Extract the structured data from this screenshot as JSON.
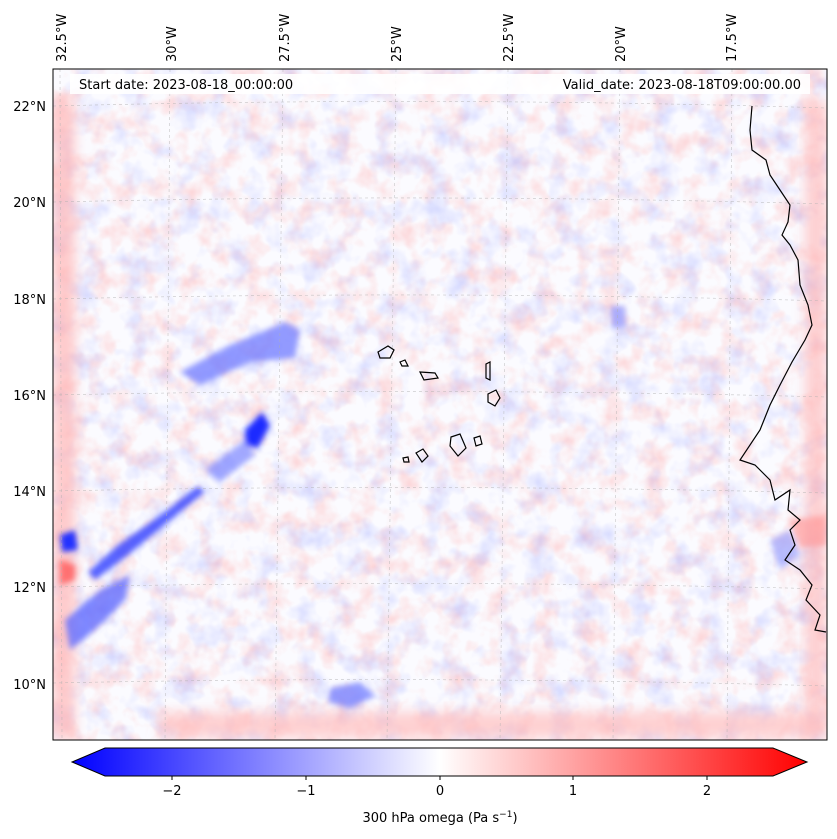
{
  "map": {
    "longitude_labels": [
      "32.5°W",
      "30°W",
      "27.5°W",
      "25°W",
      "22.5°W",
      "20°W",
      "17.5°W"
    ],
    "latitude_labels": [
      "22°N",
      "20°N",
      "18°N",
      "16°N",
      "14°N",
      "12°N",
      "10°N"
    ],
    "start_date": "Start date: 2023-08-18_00:00:00",
    "valid_date": "Valid_date: 2023-08-18T09:00:00.00",
    "field_colormap": "blue-white-red (bwr)",
    "features": [
      "coastline of West Africa",
      "Cape Verde islands",
      "gridlines dashed grey"
    ]
  },
  "colorbar": {
    "ticks": [
      "−2",
      "−1",
      "0",
      "1",
      "2"
    ],
    "range": [
      -2.7,
      2.7
    ],
    "label_prefix": "300 hPa omega (Pa s",
    "label_exp": "−1",
    "label_suffix": ")",
    "colors": {
      "low": "#0000ff",
      "mid": "#ffffff",
      "high": "#ff0000"
    }
  }
}
